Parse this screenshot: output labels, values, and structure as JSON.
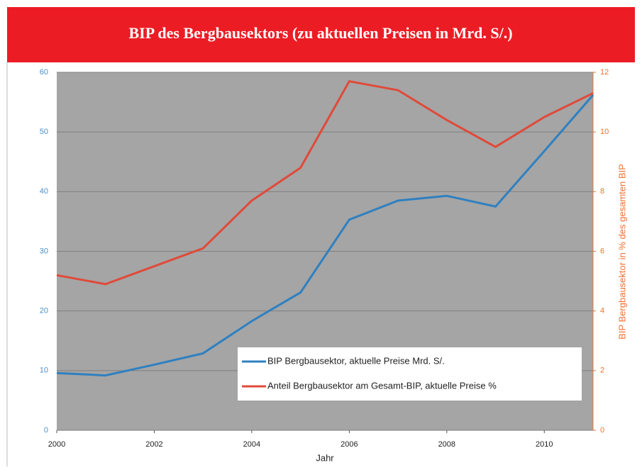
{
  "chart_data": {
    "type": "line",
    "title": "BIP des Bergbausektors (zu aktuellen Preisen in Mrd. S/.)",
    "xlabel": "Jahr",
    "y2label": "BIP Bergbausektor in % des gesamten BIP",
    "x": [
      2000,
      2001,
      2002,
      2003,
      2004,
      2005,
      2006,
      2007,
      2008,
      2009,
      2010,
      2011
    ],
    "xlim": [
      2000,
      2011
    ],
    "xticks": [
      2000,
      2002,
      2004,
      2006,
      2008,
      2010
    ],
    "ylim": [
      0,
      60
    ],
    "yticks": [
      0,
      10,
      20,
      30,
      40,
      50,
      60
    ],
    "y2lim": [
      0,
      12
    ],
    "y2ticks": [
      0,
      2,
      4,
      6,
      8,
      10,
      12
    ],
    "grid": true,
    "legend": "lower right",
    "series": [
      {
        "name": "BIP Bergbausektor, aktuelle Preise Mrd. S/.",
        "color": "#2f80c0",
        "values": [
          9.6,
          9.2,
          11,
          12.9,
          18.3,
          23.1,
          35.3,
          38.5,
          39.3,
          37.5,
          46.8,
          56.2
        ]
      },
      {
        "name": "Anteil  Bergbausektor am Gesamt-BIP, aktuelle Preise %",
        "color": "#e04a3a",
        "axis": "y2",
        "values": [
          5.2,
          4.9,
          5.5,
          6.1,
          7.7,
          8.8,
          11.7,
          11.4,
          10.4,
          9.5,
          10.5,
          11.3
        ]
      }
    ]
  }
}
